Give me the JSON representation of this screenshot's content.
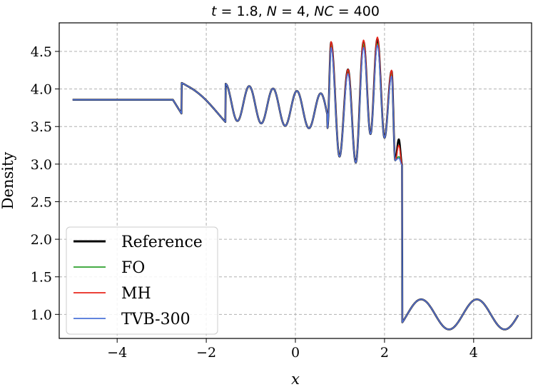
{
  "chart_data": {
    "type": "line",
    "title": "t = 1.8, N = 4, NC = 400",
    "xlabel": "x",
    "ylabel": "Density",
    "xlim": [
      -5.3,
      5.3
    ],
    "ylim": [
      0.68,
      4.88
    ],
    "xticks": [
      -4,
      -2,
      0,
      2,
      4
    ],
    "xtick_labels": [
      "−4",
      "−2",
      "0",
      "2",
      "4"
    ],
    "yticks": [
      1.0,
      1.5,
      2.0,
      2.5,
      3.0,
      3.5,
      4.0,
      4.5
    ],
    "ytick_labels": [
      "1.0",
      "1.5",
      "2.0",
      "2.5",
      "3.0",
      "3.5",
      "4.0",
      "4.5"
    ],
    "grid": true,
    "legend_position": "lower-left",
    "series": [
      {
        "name": "Reference",
        "color": "#000000",
        "peaks": [
          4.62,
          4.26,
          4.63,
          4.67,
          4.24
        ],
        "edge_peak": 3.33
      },
      {
        "name": "FO",
        "color": "#2ca02c",
        "peaks": [
          4.6,
          4.25,
          4.6,
          4.6,
          4.2
        ],
        "edge_peak": 3.1
      },
      {
        "name": "MH",
        "color": "#e8261c",
        "peaks": [
          4.63,
          4.26,
          4.65,
          4.69,
          4.25
        ],
        "edge_peak": 3.25
      },
      {
        "name": "TVB-300",
        "color": "#4c72d8",
        "peaks": [
          4.55,
          4.2,
          4.55,
          4.58,
          4.17
        ],
        "edge_peak": 3.08
      }
    ]
  }
}
